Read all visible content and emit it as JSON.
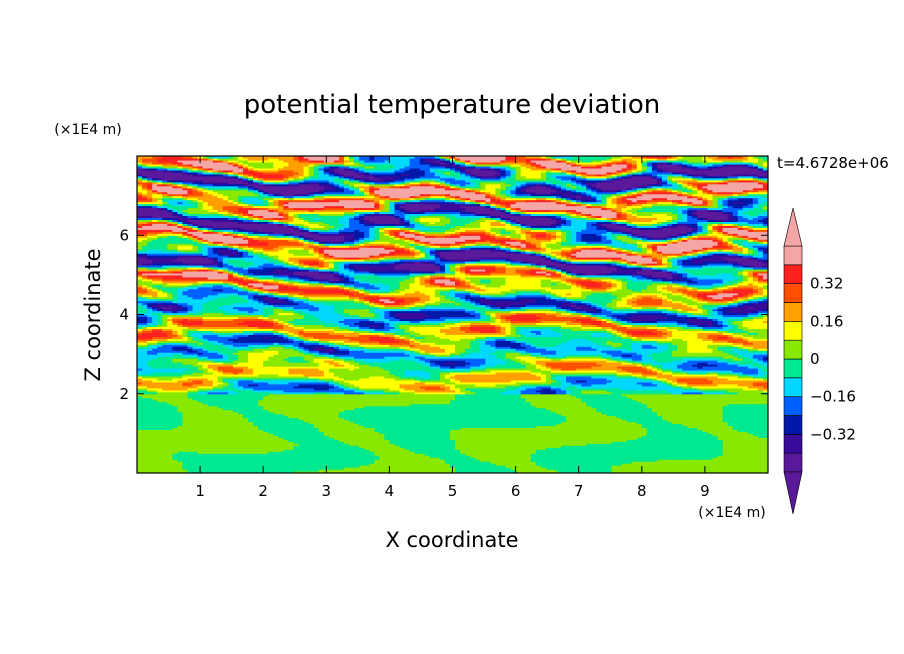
{
  "chart_data": {
    "type": "heatmap",
    "title": "potential temperature deviation",
    "xlabel": "X coordinate",
    "ylabel": "Z coordinate",
    "x_unit": "(×1E4 m)",
    "y_unit": "(×1E4 m)",
    "time_label": "t=4.6728e+06",
    "xlim": [
      0,
      10
    ],
    "ylim": [
      0,
      8
    ],
    "x_ticks": [
      "1",
      "2",
      "3",
      "4",
      "5",
      "6",
      "7",
      "8",
      "9"
    ],
    "y_ticks": [
      "2",
      "4",
      "6"
    ],
    "colorbar": {
      "levels": [
        -0.48,
        -0.4,
        -0.32,
        -0.24,
        -0.16,
        -0.08,
        0,
        0.08,
        0.16,
        0.24,
        0.32,
        0.4,
        0.48
      ],
      "tick_labels": [
        "0.32",
        "0.16",
        "0",
        "−0.16",
        "−0.32"
      ],
      "tick_values": [
        0.32,
        0.16,
        0,
        -0.16,
        -0.32
      ],
      "colors_low_to_high": [
        "#5a189a",
        "#3a0a9a",
        "#0018a8",
        "#0060ff",
        "#00d8ff",
        "#00e890",
        "#88e800",
        "#ffff00",
        "#ffa000",
        "#ff5000",
        "#ff2020",
        "#f4a6a6"
      ],
      "extend": "both"
    },
    "vertical_structure": [
      {
        "z_range": [
          0,
          2
        ],
        "description_values": [
          -0.08,
          0.08
        ]
      },
      {
        "z_range": [
          2,
          5
        ],
        "description_values": [
          -0.32,
          0.32
        ]
      },
      {
        "z_range": [
          5,
          8
        ],
        "description_values": [
          -0.48,
          0.48
        ]
      }
    ]
  }
}
